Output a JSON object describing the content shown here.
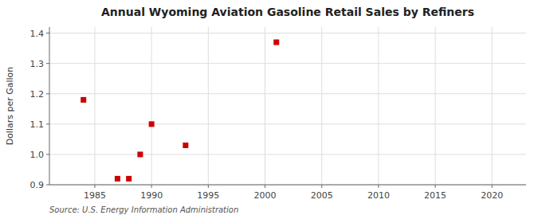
{
  "chart_data": {
    "type": "scatter",
    "title": "Annual Wyoming Aviation Gasoline Retail Sales by Refiners",
    "ylabel": "Dollars per Gallon",
    "annotation": "Source: U.S. Energy Information Administration",
    "x": [
      1984,
      1987,
      1988,
      1989,
      1990,
      1993,
      2001
    ],
    "values": [
      1.18,
      0.92,
      0.92,
      1.0,
      1.1,
      1.03,
      1.37
    ],
    "color": "#cc0000",
    "marker": "square",
    "xlim": [
      1981,
      2023
    ],
    "ylim": [
      0.9,
      1.42
    ],
    "xticks": [
      1985,
      1990,
      1995,
      2000,
      2005,
      2010,
      2015,
      2020
    ],
    "yticks": [
      0.9,
      {
        "value": 1,
        "label": "1.0"
      },
      1.1,
      1.2,
      1.3,
      1.4
    ],
    "grid": true
  }
}
